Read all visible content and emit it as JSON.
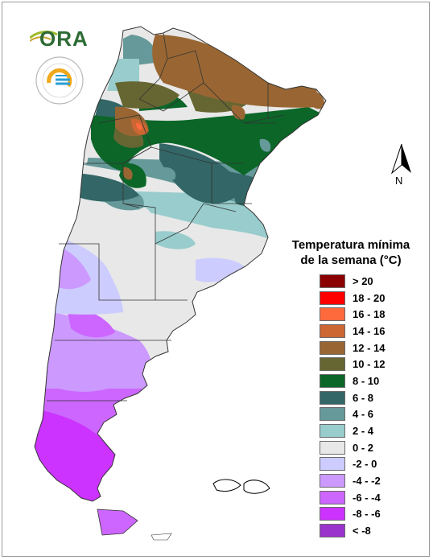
{
  "logos": {
    "ora_text": "ORA",
    "smn_ring_text": "SERVICIO METEOROLÓGICO NACIONAL",
    "smn_country": "ARGENTINA"
  },
  "north_arrow": {
    "label": "N"
  },
  "legend": {
    "title_line1": "Temperatura mínima",
    "title_line2": "de la semana (°C)",
    "items": [
      {
        "label": "> 20",
        "color": "#8b0000"
      },
      {
        "label": "18 - 20",
        "color": "#ff0000"
      },
      {
        "label": "16 - 18",
        "color": "#ff6a3d"
      },
      {
        "label": "14 - 16",
        "color": "#cc6633"
      },
      {
        "label": "12 - 14",
        "color": "#996633"
      },
      {
        "label": "10 - 12",
        "color": "#666633"
      },
      {
        "label": "8 - 10",
        "color": "#0b6628"
      },
      {
        "label": "6 - 8",
        "color": "#336666"
      },
      {
        "label": "4 - 6",
        "color": "#669999"
      },
      {
        "label": "2 - 4",
        "color": "#99cccc"
      },
      {
        "label": "0 - 2",
        "color": "#e8e8e8"
      },
      {
        "label": "-2 - 0",
        "color": "#ccccff"
      },
      {
        "label": "-4 - -2",
        "color": "#cc99ff"
      },
      {
        "label": "-6 - -4",
        "color": "#cc66ff"
      },
      {
        "label": "-8 - -6",
        "color": "#cc33ff"
      },
      {
        "label": "< -8",
        "color": "#9933cc"
      }
    ]
  }
}
